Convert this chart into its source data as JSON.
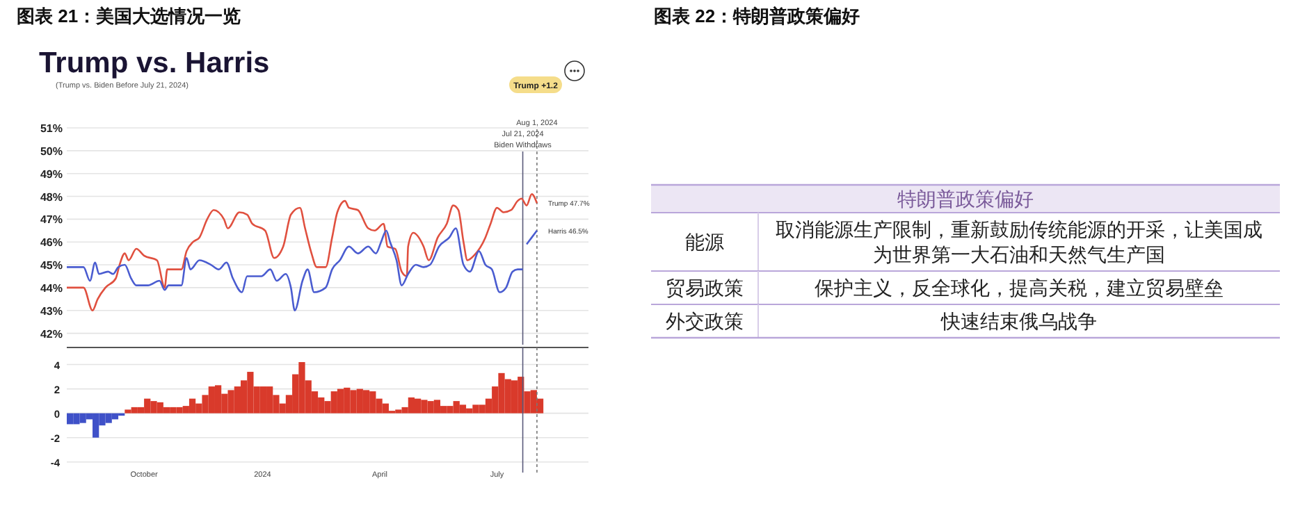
{
  "chart_data": [
    {
      "type": "line",
      "title": "Trump vs. Harris",
      "subtitle": "(Trump vs. Biden Before July 21, 2024)",
      "xlim": [
        "2023-08-02",
        "2024-09-10"
      ],
      "ylim": [
        41.5,
        51
      ],
      "yticks": [
        {
          "value": 42,
          "label": "42%"
        },
        {
          "value": 43,
          "label": "43%"
        },
        {
          "value": 44,
          "label": "44%"
        },
        {
          "value": 45,
          "label": "45%"
        },
        {
          "value": 46,
          "label": "46%"
        },
        {
          "value": 47,
          "label": "47%"
        },
        {
          "value": 48,
          "label": "48%"
        },
        {
          "value": 49,
          "label": "49%"
        },
        {
          "value": 50,
          "label": "50%"
        },
        {
          "value": 51,
          "label": "51%"
        }
      ],
      "tick_labels": "y",
      "grid": "y",
      "legend": false,
      "marker": "none",
      "line_style": "solid",
      "series": [
        {
          "color": "#e0503f",
          "x": [
            "2023-08-02",
            "2023-08-15",
            "2023-08-22",
            "2023-08-26",
            "2023-09-01",
            "2023-09-09",
            "2023-09-12",
            "2023-09-16",
            "2023-09-19",
            "2023-09-25",
            "2023-10-01",
            "2023-10-11",
            "2023-10-17",
            "2023-10-19",
            "2023-10-30",
            "2023-11-03",
            "2023-11-08",
            "2023-11-13",
            "2023-11-19",
            "2023-11-24",
            "2023-12-02",
            "2023-12-05",
            "2023-12-14",
            "2023-12-20",
            "2023-12-24",
            "2024-01-03",
            "2024-01-10",
            "2024-01-17",
            "2024-01-23",
            "2024-01-30",
            "2024-02-03",
            "2024-02-08",
            "2024-02-12",
            "2024-02-19",
            "2024-02-24",
            "2024-02-28",
            "2024-03-05",
            "2024-03-08",
            "2024-03-15",
            "2024-03-23",
            "2024-03-28",
            "2024-04-04",
            "2024-04-07",
            "2024-04-13",
            "2024-04-18",
            "2024-04-22",
            "2024-04-23",
            "2024-04-27",
            "2024-05-05",
            "2024-05-09",
            "2024-05-16",
            "2024-05-23",
            "2024-05-28",
            "2024-06-01",
            "2024-06-05",
            "2024-06-08",
            "2024-06-13",
            "2024-06-22",
            "2024-06-26",
            "2024-07-01",
            "2024-07-06",
            "2024-07-12",
            "2024-07-17",
            "2024-07-20",
            "2024-07-24",
            "2024-07-28",
            "2024-08-01"
          ],
          "values": [
            44.0,
            44.0,
            43.0,
            43.5,
            44.0,
            44.4,
            45.0,
            45.5,
            45.2,
            45.7,
            45.4,
            45.2,
            44.0,
            44.8,
            44.8,
            45.6,
            46.0,
            46.2,
            47.0,
            47.4,
            47.0,
            46.6,
            47.3,
            47.2,
            46.8,
            46.5,
            45.3,
            45.8,
            47.2,
            47.5,
            46.6,
            45.5,
            44.9,
            44.9,
            46.2,
            47.3,
            47.8,
            47.5,
            47.4,
            46.6,
            46.5,
            46.8,
            45.8,
            45.7,
            44.7,
            44.5,
            45.8,
            46.4,
            45.8,
            45.2,
            46.2,
            46.8,
            47.6,
            47.4,
            46.0,
            45.2,
            45.4,
            46.2,
            46.8,
            47.5,
            47.3,
            47.4,
            47.8,
            47.9,
            47.6,
            48.1,
            47.7
          ]
        },
        {
          "color": "#4a5cd0",
          "x": [
            "2023-08-02",
            "2023-08-15",
            "2023-08-20",
            "2023-08-24",
            "2023-08-27",
            "2023-09-03",
            "2023-09-07",
            "2023-09-11",
            "2023-09-16",
            "2023-09-21",
            "2023-09-25",
            "2023-10-04",
            "2023-10-13",
            "2023-10-17",
            "2023-10-20",
            "2023-10-30",
            "2023-11-03",
            "2023-11-06",
            "2023-11-13",
            "2023-11-22",
            "2023-11-28",
            "2023-12-04",
            "2023-12-09",
            "2023-12-16",
            "2023-12-20",
            "2023-12-31",
            "2024-01-07",
            "2024-01-12",
            "2024-01-19",
            "2024-01-23",
            "2024-01-26",
            "2024-02-01",
            "2024-02-05",
            "2024-02-10",
            "2024-02-19",
            "2024-02-24",
            "2024-03-01",
            "2024-03-08",
            "2024-03-15",
            "2024-03-23",
            "2024-03-29",
            "2024-04-02",
            "2024-04-06",
            "2024-04-09",
            "2024-04-14",
            "2024-04-18",
            "2024-04-23",
            "2024-04-29",
            "2024-05-05",
            "2024-05-10",
            "2024-05-17",
            "2024-05-25",
            "2024-05-30",
            "2024-06-05",
            "2024-06-10",
            "2024-06-17",
            "2024-06-22",
            "2024-06-27",
            "2024-07-03",
            "2024-07-08",
            "2024-07-13",
            "2024-07-17",
            "2024-07-21"
          ],
          "values": [
            44.9,
            44.9,
            44.3,
            45.1,
            44.6,
            44.7,
            44.6,
            44.9,
            45.0,
            44.4,
            44.1,
            44.1,
            44.3,
            43.9,
            44.1,
            44.1,
            45.3,
            44.8,
            45.2,
            45.0,
            44.8,
            45.1,
            44.4,
            43.8,
            44.5,
            44.5,
            44.8,
            44.3,
            44.6,
            44.0,
            43.0,
            44.3,
            44.8,
            43.8,
            44.0,
            44.8,
            45.2,
            45.8,
            45.5,
            45.8,
            45.5,
            46.0,
            46.5,
            46.0,
            45.2,
            44.1,
            44.6,
            45.0,
            44.9,
            45.0,
            45.8,
            46.2,
            46.6,
            45.0,
            44.7,
            45.6,
            45.0,
            44.8,
            43.8,
            44.0,
            44.7,
            44.8,
            44.8
          ]
        },
        {
          "color": "#4a5cd0",
          "x": [
            "2024-07-24",
            "2024-07-28",
            "2024-08-01"
          ],
          "values": [
            45.9,
            46.2,
            46.5
          ]
        }
      ],
      "ref_lines": [
        {
          "axis": "x",
          "value": "2024-07-21",
          "label": "Jul 21, 2024\nBiden Withdraws",
          "color": "#5a5a7a",
          "line_style": "solid"
        },
        {
          "axis": "x",
          "value": "2024-08-01",
          "label": "Aug 1, 2024",
          "color": "#777777",
          "line_style": "dotted"
        }
      ],
      "annotations": [
        "图表 21：美国大选情况一览",
        "Trump +1.2",
        {
          "text": "Trump 47.7%",
          "x": "2024-08-01",
          "y": 47.7
        },
        {
          "text": "Harris 46.5%",
          "x": "2024-08-01",
          "y": 46.5
        }
      ]
    },
    {
      "type": "bar",
      "xlim": [
        "2023-08-02",
        "2024-09-10"
      ],
      "ylim": [
        -4.3,
        5.4
      ],
      "yticks": [
        -4,
        -2,
        0,
        2,
        4
      ],
      "xticks": [
        {
          "value": "2023-10-01",
          "label": "October"
        },
        {
          "value": "2024-01-01",
          "label": "2024"
        },
        {
          "value": "2024-04-01",
          "label": "April"
        },
        {
          "value": "2024-07-01",
          "label": "July"
        }
      ],
      "grid": "y",
      "x": [
        "2023-08-02",
        "2023-08-07",
        "2023-08-12",
        "2023-08-17",
        "2023-08-22",
        "2023-08-27",
        "2023-09-01",
        "2023-09-06",
        "2023-09-11",
        "2023-09-16",
        "2023-09-21",
        "2023-09-26",
        "2023-10-01",
        "2023-10-06",
        "2023-10-11",
        "2023-10-16",
        "2023-10-21",
        "2023-10-26",
        "2023-10-31",
        "2023-11-05",
        "2023-11-10",
        "2023-11-15",
        "2023-11-20",
        "2023-11-25",
        "2023-11-30",
        "2023-12-05",
        "2023-12-10",
        "2023-12-15",
        "2023-12-20",
        "2023-12-25",
        "2023-12-30",
        "2024-01-04",
        "2024-01-09",
        "2024-01-14",
        "2024-01-19",
        "2024-01-24",
        "2024-01-29",
        "2024-02-03",
        "2024-02-08",
        "2024-02-13",
        "2024-02-18",
        "2024-02-23",
        "2024-02-28",
        "2024-03-04",
        "2024-03-09",
        "2024-03-14",
        "2024-03-19",
        "2024-03-24",
        "2024-03-29",
        "2024-04-03",
        "2024-04-08",
        "2024-04-13",
        "2024-04-18",
        "2024-04-23",
        "2024-04-28",
        "2024-05-03",
        "2024-05-08",
        "2024-05-13",
        "2024-05-18",
        "2024-05-23",
        "2024-05-28",
        "2024-06-02",
        "2024-06-07",
        "2024-06-12",
        "2024-06-17",
        "2024-06-22",
        "2024-06-27",
        "2024-07-02",
        "2024-07-07",
        "2024-07-12",
        "2024-07-17",
        "2024-07-22",
        "2024-07-27",
        "2024-08-01"
      ],
      "values": [
        -0.9,
        -0.9,
        -0.8,
        -0.5,
        -2.0,
        -1.0,
        -0.8,
        -0.5,
        -0.2,
        0.3,
        0.5,
        0.5,
        1.2,
        1.0,
        0.9,
        0.5,
        0.5,
        0.5,
        0.6,
        1.2,
        0.8,
        1.5,
        2.2,
        2.3,
        1.6,
        1.9,
        2.2,
        2.7,
        3.4,
        2.2,
        2.2,
        2.2,
        1.5,
        0.8,
        1.5,
        3.2,
        4.2,
        2.7,
        1.8,
        1.3,
        1.0,
        1.8,
        2.0,
        2.1,
        1.9,
        2.0,
        1.9,
        1.8,
        1.2,
        0.8,
        0.2,
        0.3,
        0.5,
        1.3,
        1.2,
        1.1,
        1.0,
        1.1,
        0.6,
        0.6,
        1.0,
        0.7,
        0.4,
        0.7,
        0.7,
        1.2,
        2.2,
        3.3,
        2.8,
        2.7,
        3.0,
        1.8,
        1.9,
        1.2
      ],
      "colors": [
        "#3f51c8",
        "#3f51c8",
        "#3f51c8",
        "#3f51c8",
        "#3f51c8",
        "#3f51c8",
        "#3f51c8",
        "#3f51c8",
        "#3f51c8",
        "#d93a2b",
        "#d93a2b",
        "#d93a2b",
        "#d93a2b",
        "#d93a2b",
        "#d93a2b",
        "#d93a2b",
        "#d93a2b",
        "#d93a2b",
        "#d93a2b",
        "#d93a2b",
        "#d93a2b",
        "#d93a2b",
        "#d93a2b",
        "#d93a2b",
        "#d93a2b",
        "#d93a2b",
        "#d93a2b",
        "#d93a2b",
        "#d93a2b",
        "#d93a2b",
        "#d93a2b",
        "#d93a2b",
        "#d93a2b",
        "#d93a2b",
        "#d93a2b",
        "#d93a2b",
        "#d93a2b",
        "#d93a2b",
        "#d93a2b",
        "#d93a2b",
        "#d93a2b",
        "#d93a2b",
        "#d93a2b",
        "#d93a2b",
        "#d93a2b",
        "#d93a2b",
        "#d93a2b",
        "#d93a2b",
        "#d93a2b",
        "#d93a2b",
        "#d93a2b",
        "#d93a2b",
        "#d93a2b",
        "#d93a2b",
        "#d93a2b",
        "#d93a2b",
        "#d93a2b",
        "#d93a2b",
        "#d93a2b",
        "#d93a2b",
        "#d93a2b",
        "#d93a2b",
        "#d93a2b",
        "#d93a2b",
        "#d93a2b",
        "#d93a2b",
        "#d93a2b",
        "#d93a2b",
        "#d93a2b",
        "#d93a2b",
        "#d93a2b",
        "#d93a2b",
        "#d93a2b",
        "#d93a2b"
      ],
      "ref_lines": [
        {
          "axis": "x",
          "value": "2024-07-21",
          "color": "#5a5a7a",
          "line_style": "solid"
        },
        {
          "axis": "x",
          "value": "2024-08-01",
          "color": "#777777",
          "line_style": "dotted"
        }
      ]
    },
    {
      "type": "other",
      "title": "图表 22：特朗普政策偏好",
      "subtitle": "特朗普政策偏好",
      "annotations": [
        "能源",
        "取消能源生产限制，重新鼓励传统能源的开采，让美国成为世界第一大石油和天然气生产国",
        "贸易政策",
        "保护主义，反全球化，提高关税，建立贸易壁垒",
        "外交政策",
        "快速结束俄乌战争"
      ]
    }
  ]
}
